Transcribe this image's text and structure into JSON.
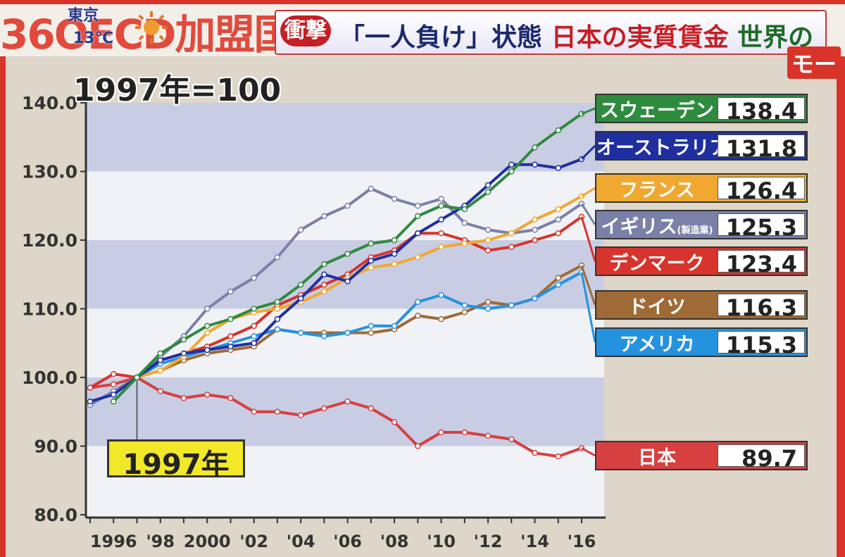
{
  "header": {
    "oecd_text": "36OECD加盟国",
    "weather_city": "東京",
    "weather_temp": "13℃",
    "shock_label": "衝撃",
    "headline_blue": "「一人負け」状態",
    "headline_red": "日本の実質賃金",
    "headline_green": "世界の",
    "program_fragment": "モー"
  },
  "baseline_title": "1997年=100",
  "baseline_marker": "1997年",
  "colors": {
    "sweden": "#2e8b3e",
    "australia": "#1f2fa0",
    "france": "#f0a830",
    "uk": "#7a80a8",
    "denmark": "#d6342c",
    "germany": "#a06a36",
    "usa": "#2592e0",
    "japan": "#d64040",
    "band": "#c9cde4",
    "plot_bg": "#f1f2f6"
  },
  "legend": [
    {
      "key": "sweden",
      "name": "スウェーデン",
      "value": "138.4"
    },
    {
      "key": "australia",
      "name": "オーストラリア",
      "value": "131.8"
    },
    {
      "key": "france",
      "name": "フランス",
      "value": "126.4"
    },
    {
      "key": "uk",
      "name": "イギリス",
      "name_note": "(製造業)",
      "value": "125.3"
    },
    {
      "key": "denmark",
      "name": "デンマーク",
      "value": "123.4"
    },
    {
      "key": "germany",
      "name": "ドイツ",
      "value": "116.3"
    },
    {
      "key": "usa",
      "name": "アメリカ",
      "value": "115.3"
    },
    {
      "key": "japan",
      "name": "日本",
      "value": "89.7"
    }
  ],
  "chart_data": {
    "type": "line",
    "title": "1997年=100",
    "ylim": [
      80,
      140
    ],
    "yticks": [
      "80.0",
      "90.0",
      "100.0",
      "110.0",
      "120.0",
      "130.0",
      "140.0"
    ],
    "xlim": [
      1995,
      2016
    ],
    "xticks": [
      {
        "x": 1996,
        "label": "1996"
      },
      {
        "x": 1998,
        "label": "'98"
      },
      {
        "x": 2000,
        "label": "2000"
      },
      {
        "x": 2002,
        "label": "'02"
      },
      {
        "x": 2004,
        "label": "'04"
      },
      {
        "x": 2006,
        "label": "'06"
      },
      {
        "x": 2008,
        "label": "'08"
      },
      {
        "x": 2010,
        "label": "'10"
      },
      {
        "x": 2012,
        "label": "'12"
      },
      {
        "x": 2014,
        "label": "'14"
      },
      {
        "x": 2016,
        "label": "'16"
      }
    ],
    "x": [
      1995,
      1996,
      1997,
      1998,
      1999,
      2000,
      2001,
      2002,
      2003,
      2004,
      2005,
      2006,
      2007,
      2008,
      2009,
      2010,
      2011,
      2012,
      2013,
      2014,
      2015,
      2016
    ],
    "series": [
      {
        "key": "sweden",
        "name": "スウェーデン",
        "values": [
          null,
          96.5,
          100,
          103.5,
          105.5,
          107.5,
          108.5,
          110,
          111,
          113.5,
          116.5,
          118,
          119.5,
          120,
          123.5,
          125,
          124.5,
          127,
          130,
          133.5,
          136,
          138.4
        ]
      },
      {
        "key": "australia",
        "name": "オーストラリア",
        "values": [
          96.5,
          97.5,
          100,
          102.5,
          103.5,
          104,
          104.5,
          105,
          108.5,
          111.5,
          115,
          114,
          117,
          118,
          121,
          123,
          125,
          128,
          131,
          131,
          130.5,
          131.8
        ]
      },
      {
        "key": "france",
        "name": "フランス",
        "values": [
          null,
          null,
          100,
          101,
          103,
          106.5,
          108.5,
          109.5,
          110,
          111,
          112.5,
          114.5,
          116,
          116.5,
          117.5,
          119,
          119.5,
          120,
          121,
          123,
          124.5,
          126.4
        ]
      },
      {
        "key": "uk",
        "name": "イギリス",
        "values": [
          96,
          98,
          100,
          103,
          106,
          110,
          112.5,
          114.5,
          117.5,
          121.5,
          123.5,
          125,
          127.5,
          126,
          125,
          126,
          122.5,
          121.5,
          121,
          121.5,
          123,
          125.3
        ]
      },
      {
        "key": "denmark",
        "name": "デンマーク",
        "values": [
          98.5,
          100.5,
          100,
          102.5,
          103.5,
          104.5,
          106,
          107.5,
          110.5,
          112,
          113.5,
          115,
          117.5,
          118.5,
          121,
          121,
          120,
          118.5,
          119,
          120,
          121,
          123.4
        ]
      },
      {
        "key": "germany",
        "name": "ドイツ",
        "values": [
          null,
          null,
          100,
          101,
          102.5,
          103.5,
          104,
          104.5,
          107,
          106.5,
          106.5,
          106.5,
          106.5,
          107,
          109,
          108.5,
          109.5,
          111,
          110.5,
          111.5,
          114.5,
          116.3
        ]
      },
      {
        "key": "usa",
        "name": "アメリカ",
        "values": [
          null,
          null,
          100,
          102,
          103,
          104,
          105,
          106,
          107,
          106.5,
          106,
          106.5,
          107.5,
          107.5,
          111,
          112,
          110.5,
          110,
          110.5,
          111.5,
          113.5,
          115.3
        ]
      },
      {
        "key": "japan",
        "name": "日本",
        "values": [
          98.5,
          99,
          100,
          98,
          97,
          97.5,
          97,
          95,
          95,
          94.5,
          95.5,
          96.5,
          95.5,
          93.5,
          90,
          92,
          92,
          91.5,
          91,
          89,
          88.5,
          89.7
        ]
      }
    ]
  }
}
